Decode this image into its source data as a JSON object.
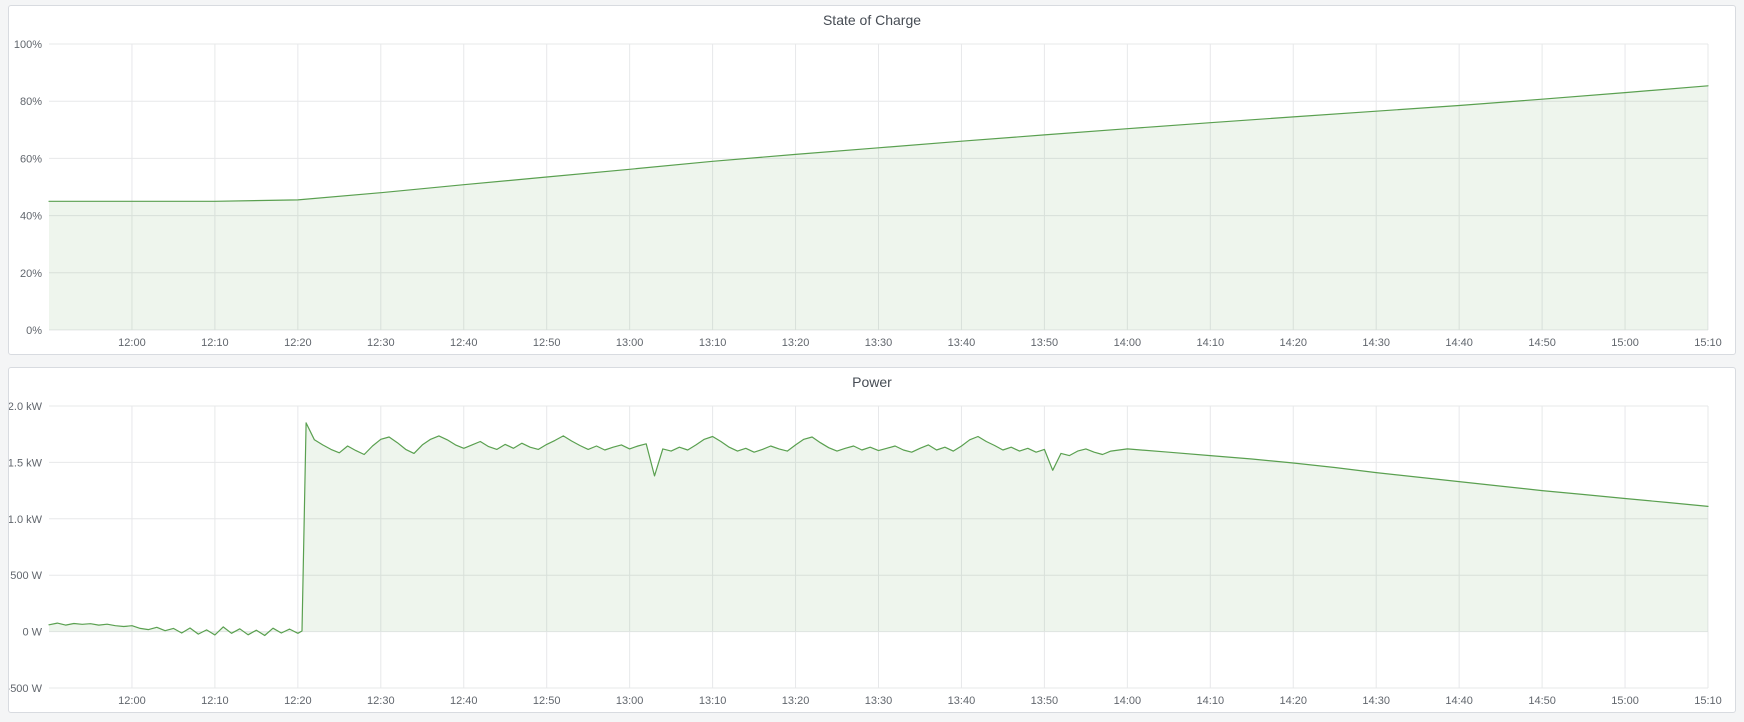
{
  "panels": [
    {
      "title": "State of Charge"
    },
    {
      "title": "Power"
    }
  ],
  "colors": {
    "series_green": "#5aa050",
    "series_fill": "rgba(90,160,80,0.10)",
    "grid": "#e7e8ea",
    "tick_text": "#61666d",
    "panel_border": "#d8dbe0",
    "panel_bg": "#ffffff",
    "page_bg": "#f4f5f6",
    "title_text": "#464c54"
  },
  "time_axis": {
    "start_label": "12:00",
    "end_label": "15:10",
    "interval_minutes": 10
  },
  "chart_data": [
    {
      "type": "area",
      "title": "State of Charge",
      "ylabel": "",
      "xlabel": "",
      "ylim": [
        0,
        100
      ],
      "fill_baseline": 0,
      "grid": true,
      "yticks": [
        {
          "v": 0,
          "label": "0%"
        },
        {
          "v": 20,
          "label": "20%"
        },
        {
          "v": 40,
          "label": "40%"
        },
        {
          "v": 60,
          "label": "60%"
        },
        {
          "v": 80,
          "label": "80%"
        },
        {
          "v": 100,
          "label": "100%"
        }
      ],
      "xlim": [
        0,
        200
      ],
      "xticks": [
        {
          "t": 10,
          "label": "12:00"
        },
        {
          "t": 20,
          "label": "12:10"
        },
        {
          "t": 30,
          "label": "12:20"
        },
        {
          "t": 40,
          "label": "12:30"
        },
        {
          "t": 50,
          "label": "12:40"
        },
        {
          "t": 60,
          "label": "12:50"
        },
        {
          "t": 70,
          "label": "13:00"
        },
        {
          "t": 80,
          "label": "13:10"
        },
        {
          "t": 90,
          "label": "13:20"
        },
        {
          "t": 100,
          "label": "13:30"
        },
        {
          "t": 110,
          "label": "13:40"
        },
        {
          "t": 120,
          "label": "13:50"
        },
        {
          "t": 130,
          "label": "14:00"
        },
        {
          "t": 140,
          "label": "14:10"
        },
        {
          "t": 150,
          "label": "14:20"
        },
        {
          "t": 160,
          "label": "14:30"
        },
        {
          "t": 170,
          "label": "14:40"
        },
        {
          "t": 180,
          "label": "14:50"
        },
        {
          "t": 190,
          "label": "15:00"
        },
        {
          "t": 200,
          "label": "15:10"
        }
      ],
      "series": [
        {
          "name": "State of Charge",
          "unit": "%",
          "points": [
            [
              0,
              45
            ],
            [
              10,
              45
            ],
            [
              20,
              45
            ],
            [
              30,
              45.5
            ],
            [
              40,
              48
            ],
            [
              50,
              50.8
            ],
            [
              60,
              53.5
            ],
            [
              70,
              56.2
            ],
            [
              80,
              59
            ],
            [
              90,
              61.4
            ],
            [
              100,
              63.7
            ],
            [
              110,
              66
            ],
            [
              120,
              68.2
            ],
            [
              130,
              70.4
            ],
            [
              140,
              72.5
            ],
            [
              150,
              74.5
            ],
            [
              160,
              76.5
            ],
            [
              170,
              78.5
            ],
            [
              180,
              80.7
            ],
            [
              190,
              83
            ],
            [
              200,
              85.4
            ]
          ]
        }
      ]
    },
    {
      "type": "area",
      "title": "Power",
      "ylabel": "",
      "xlabel": "",
      "ylim": [
        -500,
        2000
      ],
      "fill_baseline": 0,
      "grid": true,
      "yticks": [
        {
          "v": -500,
          "label": "-500 W"
        },
        {
          "v": 0,
          "label": "0 W"
        },
        {
          "v": 500,
          "label": "500 W"
        },
        {
          "v": 1000,
          "label": "1.0 kW"
        },
        {
          "v": 1500,
          "label": "1.5 kW"
        },
        {
          "v": 2000,
          "label": "2.0 kW"
        }
      ],
      "xlim": [
        0,
        200
      ],
      "xticks": [
        {
          "t": 10,
          "label": "12:00"
        },
        {
          "t": 20,
          "label": "12:10"
        },
        {
          "t": 30,
          "label": "12:20"
        },
        {
          "t": 40,
          "label": "12:30"
        },
        {
          "t": 50,
          "label": "12:40"
        },
        {
          "t": 60,
          "label": "12:50"
        },
        {
          "t": 70,
          "label": "13:00"
        },
        {
          "t": 80,
          "label": "13:10"
        },
        {
          "t": 90,
          "label": "13:20"
        },
        {
          "t": 100,
          "label": "13:30"
        },
        {
          "t": 110,
          "label": "13:40"
        },
        {
          "t": 120,
          "label": "13:50"
        },
        {
          "t": 130,
          "label": "14:00"
        },
        {
          "t": 140,
          "label": "14:10"
        },
        {
          "t": 150,
          "label": "14:20"
        },
        {
          "t": 160,
          "label": "14:30"
        },
        {
          "t": 170,
          "label": "14:40"
        },
        {
          "t": 180,
          "label": "14:50"
        },
        {
          "t": 190,
          "label": "15:00"
        },
        {
          "t": 200,
          "label": "15:10"
        }
      ],
      "series": [
        {
          "name": "Power",
          "unit": "W",
          "points": [
            [
              0,
              60
            ],
            [
              1,
              75
            ],
            [
              2,
              58
            ],
            [
              3,
              72
            ],
            [
              4,
              65
            ],
            [
              5,
              70
            ],
            [
              6,
              58
            ],
            [
              7,
              66
            ],
            [
              8,
              52
            ],
            [
              9,
              45
            ],
            [
              10,
              52
            ],
            [
              11,
              28
            ],
            [
              12,
              18
            ],
            [
              13,
              38
            ],
            [
              14,
              8
            ],
            [
              15,
              28
            ],
            [
              16,
              -12
            ],
            [
              17,
              32
            ],
            [
              18,
              -22
            ],
            [
              19,
              15
            ],
            [
              20,
              -30
            ],
            [
              21,
              42
            ],
            [
              22,
              -15
            ],
            [
              23,
              25
            ],
            [
              24,
              -28
            ],
            [
              25,
              12
            ],
            [
              26,
              -35
            ],
            [
              27,
              30
            ],
            [
              28,
              -12
            ],
            [
              29,
              22
            ],
            [
              30,
              -15
            ],
            [
              30.5,
              5
            ],
            [
              31,
              1850
            ],
            [
              32,
              1700
            ],
            [
              33,
              1655
            ],
            [
              34,
              1615
            ],
            [
              35,
              1585
            ],
            [
              36,
              1645
            ],
            [
              37,
              1605
            ],
            [
              38,
              1570
            ],
            [
              39,
              1645
            ],
            [
              40,
              1705
            ],
            [
              41,
              1725
            ],
            [
              42,
              1675
            ],
            [
              43,
              1615
            ],
            [
              44,
              1580
            ],
            [
              45,
              1655
            ],
            [
              46,
              1705
            ],
            [
              47,
              1735
            ],
            [
              48,
              1700
            ],
            [
              49,
              1655
            ],
            [
              50,
              1625
            ],
            [
              51,
              1655
            ],
            [
              52,
              1685
            ],
            [
              53,
              1640
            ],
            [
              54,
              1615
            ],
            [
              55,
              1660
            ],
            [
              56,
              1625
            ],
            [
              57,
              1670
            ],
            [
              58,
              1635
            ],
            [
              59,
              1615
            ],
            [
              60,
              1660
            ],
            [
              61,
              1695
            ],
            [
              62,
              1735
            ],
            [
              63,
              1690
            ],
            [
              64,
              1650
            ],
            [
              65,
              1615
            ],
            [
              66,
              1645
            ],
            [
              67,
              1610
            ],
            [
              68,
              1635
            ],
            [
              69,
              1655
            ],
            [
              70,
              1620
            ],
            [
              71,
              1645
            ],
            [
              72,
              1665
            ],
            [
              73,
              1380
            ],
            [
              74,
              1620
            ],
            [
              75,
              1600
            ],
            [
              76,
              1635
            ],
            [
              77,
              1610
            ],
            [
              78,
              1655
            ],
            [
              79,
              1705
            ],
            [
              80,
              1730
            ],
            [
              81,
              1685
            ],
            [
              82,
              1635
            ],
            [
              83,
              1600
            ],
            [
              84,
              1625
            ],
            [
              85,
              1590
            ],
            [
              86,
              1615
            ],
            [
              87,
              1645
            ],
            [
              88,
              1620
            ],
            [
              89,
              1600
            ],
            [
              90,
              1655
            ],
            [
              91,
              1705
            ],
            [
              92,
              1725
            ],
            [
              93,
              1675
            ],
            [
              94,
              1630
            ],
            [
              95,
              1600
            ],
            [
              96,
              1625
            ],
            [
              97,
              1645
            ],
            [
              98,
              1610
            ],
            [
              99,
              1635
            ],
            [
              100,
              1605
            ],
            [
              101,
              1625
            ],
            [
              102,
              1645
            ],
            [
              103,
              1610
            ],
            [
              104,
              1590
            ],
            [
              105,
              1625
            ],
            [
              106,
              1655
            ],
            [
              107,
              1610
            ],
            [
              108,
              1635
            ],
            [
              109,
              1600
            ],
            [
              110,
              1645
            ],
            [
              111,
              1700
            ],
            [
              112,
              1730
            ],
            [
              113,
              1685
            ],
            [
              114,
              1650
            ],
            [
              115,
              1610
            ],
            [
              116,
              1635
            ],
            [
              117,
              1600
            ],
            [
              118,
              1625
            ],
            [
              119,
              1590
            ],
            [
              120,
              1615
            ],
            [
              121,
              1430
            ],
            [
              122,
              1580
            ],
            [
              123,
              1560
            ],
            [
              124,
              1600
            ],
            [
              125,
              1620
            ],
            [
              126,
              1590
            ],
            [
              127,
              1570
            ],
            [
              128,
              1600
            ],
            [
              129,
              1610
            ],
            [
              130,
              1620
            ],
            [
              135,
              1590
            ],
            [
              140,
              1560
            ],
            [
              145,
              1530
            ],
            [
              150,
              1495
            ],
            [
              155,
              1455
            ],
            [
              160,
              1410
            ],
            [
              165,
              1370
            ],
            [
              170,
              1330
            ],
            [
              175,
              1290
            ],
            [
              180,
              1250
            ],
            [
              185,
              1215
            ],
            [
              190,
              1180
            ],
            [
              195,
              1145
            ],
            [
              200,
              1110
            ]
          ]
        }
      ]
    }
  ]
}
